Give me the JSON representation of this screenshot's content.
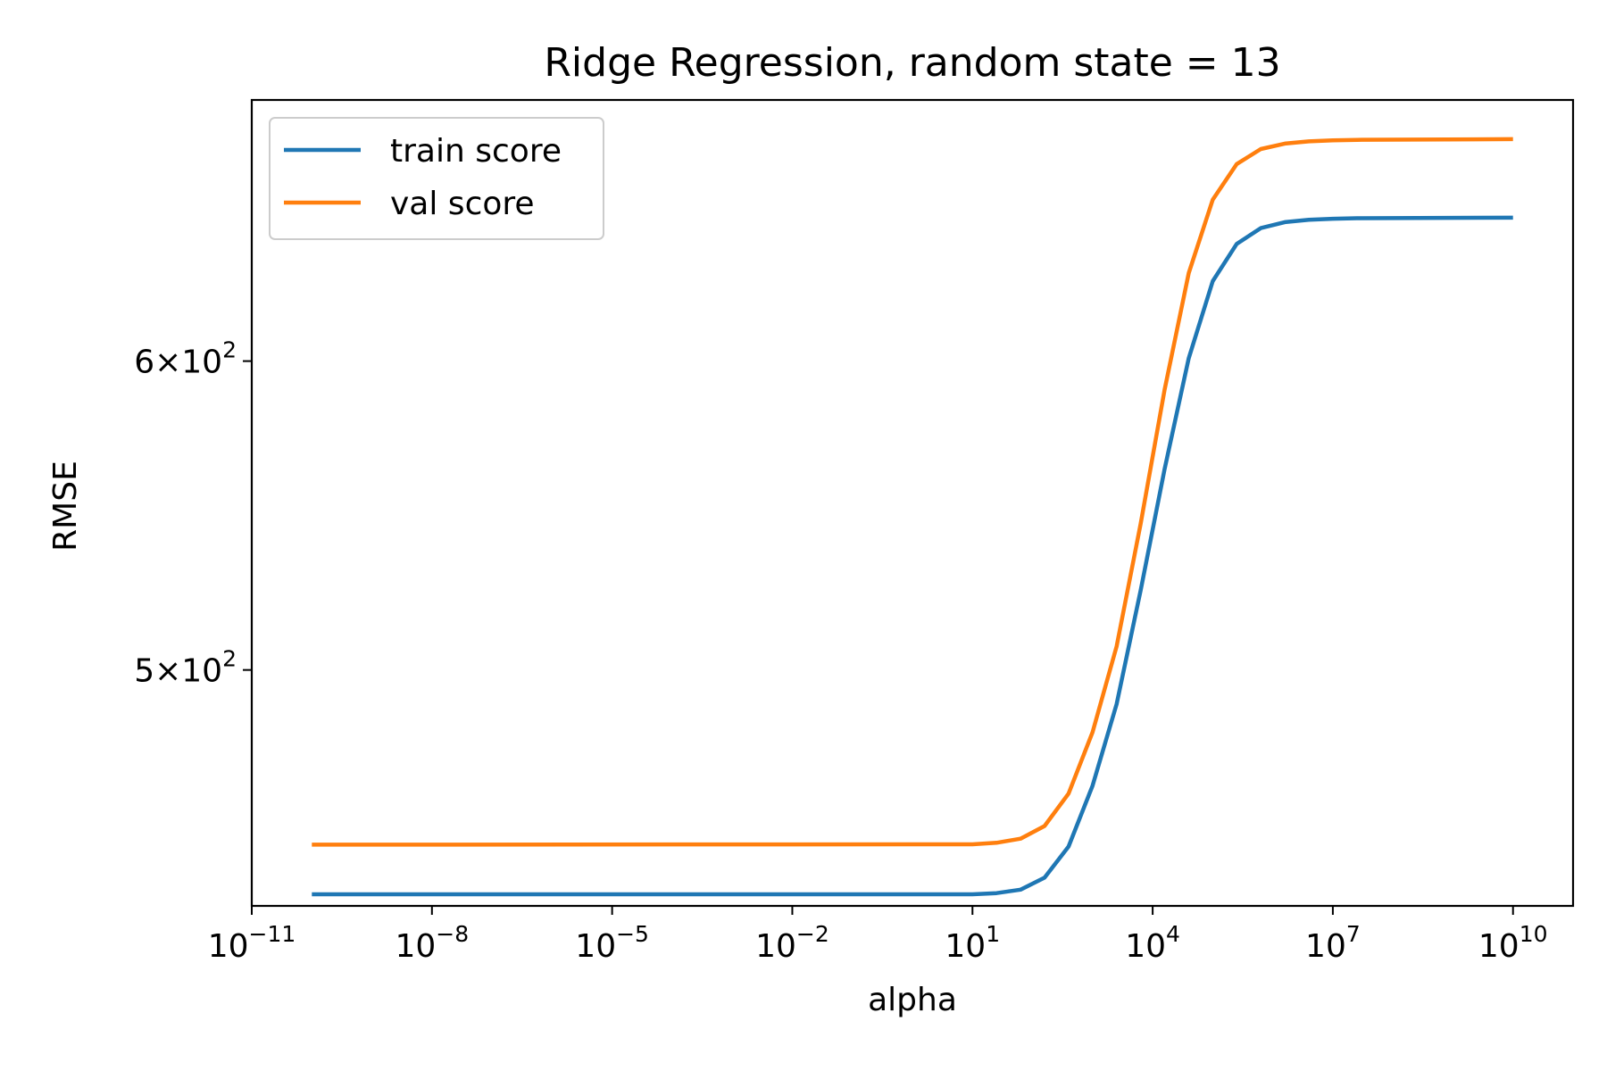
{
  "chart_data": {
    "type": "line",
    "title": "Ridge Regression, random state = 13",
    "xlabel": "alpha",
    "ylabel": "RMSE",
    "xscale": "log",
    "yscale": "log",
    "xlim": [
      1e-11,
      100000000000.0
    ],
    "ylim": [
      435,
      700
    ],
    "x_ticks": [
      {
        "base": "10",
        "exp": "−11",
        "value": 1e-11
      },
      {
        "base": "10",
        "exp": "−8",
        "value": 1e-08
      },
      {
        "base": "10",
        "exp": "−5",
        "value": 1e-05
      },
      {
        "base": "10",
        "exp": "−2",
        "value": 0.01
      },
      {
        "base": "10",
        "exp": "1",
        "value": 10
      },
      {
        "base": "10",
        "exp": "4",
        "value": 10000
      },
      {
        "base": "10",
        "exp": "7",
        "value": 10000000
      },
      {
        "base": "10",
        "exp": "10",
        "value": 10000000000
      }
    ],
    "y_ticks": [
      {
        "mantissa": "6",
        "base": "10",
        "exp": "2",
        "value": 600
      },
      {
        "mantissa": "5",
        "base": "10",
        "exp": "2",
        "value": 500
      }
    ],
    "legend_position": "upper-left",
    "grid": false,
    "x_log10": [
      -10,
      1,
      1.4,
      1.8,
      2.2,
      2.6,
      3.0,
      3.4,
      3.8,
      4.2,
      4.6,
      5.0,
      5.4,
      5.8,
      6.2,
      6.6,
      7.0,
      7.4,
      10
    ],
    "series": [
      {
        "name": "train score",
        "color": "#1f77b4",
        "values": [
          438,
          438,
          438.3,
          439.2,
          442.3,
          450.5,
          467,
          490,
          524,
          563,
          601,
          629,
          643,
          649,
          651.3,
          652.2,
          652.6,
          652.8,
          653
        ]
      },
      {
        "name": "val score",
        "color": "#ff7f0e",
        "values": [
          451,
          451.1,
          451.5,
          452.6,
          456,
          464.8,
          482,
          507,
          545,
          590,
          632,
          660,
          674,
          680,
          682.2,
          683.1,
          683.5,
          683.7,
          684
        ]
      }
    ]
  }
}
